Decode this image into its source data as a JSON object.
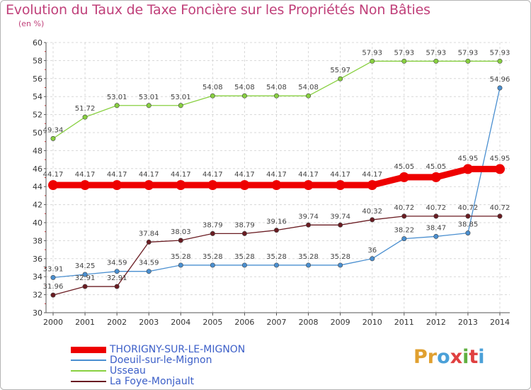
{
  "title": "Evolution du Taux de Taxe Foncière sur les Propriétés Non Bâties",
  "unit_label": "(en %)",
  "brand": {
    "name": "Proxiti",
    "letters": [
      "P",
      "r",
      "o",
      "x",
      "i",
      "t",
      "i"
    ],
    "colors": [
      "#e0a030",
      "#e0a030",
      "#4aa0d8",
      "#e04040",
      "#60b040",
      "#e04040",
      "#4aa0d8"
    ]
  },
  "chart_data": {
    "type": "line",
    "title": "Evolution du Taux de Taxe Foncière sur les Propriétés Non Bâties",
    "ylabel": "(en %)",
    "xlabel": "",
    "ylim": [
      30,
      60
    ],
    "y_ticks": [
      30,
      32,
      34,
      36,
      38,
      40,
      42,
      44,
      46,
      48,
      50,
      52,
      54,
      56,
      58,
      60
    ],
    "x": [
      "2000",
      "2001",
      "2002",
      "2003",
      "2004",
      "2005",
      "2006",
      "2007",
      "2008",
      "2009",
      "2010",
      "2011",
      "2012",
      "2013",
      "2014"
    ],
    "grid": true,
    "legend_position": "bottom-left",
    "series": [
      {
        "name": "THORIGNY-SUR-LE-MIGNON",
        "color": "#ee0000",
        "emphasis": true,
        "values": [
          44.17,
          44.17,
          44.17,
          44.17,
          44.17,
          44.17,
          44.17,
          44.17,
          44.17,
          44.17,
          44.17,
          45.05,
          45.05,
          45.95,
          45.95
        ],
        "labels": [
          "44.17",
          "44.17",
          "44.17",
          "44.17",
          "44.17",
          "44.17",
          "44.17",
          "44.17",
          "44.17",
          "44.17",
          "44.17",
          "45.05",
          "45.05",
          "45.95",
          "45.95"
        ]
      },
      {
        "name": "Doeuil-sur-le-Mignon",
        "color": "#4a8fd0",
        "values": [
          33.91,
          34.25,
          34.59,
          34.59,
          35.28,
          35.28,
          35.28,
          35.28,
          35.28,
          35.28,
          36,
          38.22,
          38.47,
          38.85,
          54.96
        ],
        "labels": [
          "33.91",
          "34.25",
          "34.59",
          "34.59",
          "35.28",
          "35.28",
          "35.28",
          "35.28",
          "35.28",
          "35.28",
          "36",
          "38.22",
          "38.47",
          "38.85",
          "54.96"
        ]
      },
      {
        "name": "Usseau",
        "color": "#88d040",
        "values": [
          49.34,
          51.72,
          53.01,
          53.01,
          53.01,
          54.08,
          54.08,
          54.08,
          54.08,
          55.97,
          57.93,
          57.93,
          57.93,
          57.93,
          57.93
        ],
        "labels": [
          "49.34",
          "51.72",
          "53.01",
          "53.01",
          "53.01",
          "54.08",
          "54.08",
          "54.08",
          "54.08",
          "55.97",
          "57.93",
          "57.93",
          "57.93",
          "57.93",
          "57.93"
        ]
      },
      {
        "name": "La Foye-Monjault",
        "color": "#6a1c22",
        "values": [
          31.96,
          32.91,
          32.91,
          37.84,
          38.03,
          38.79,
          38.79,
          39.16,
          39.74,
          39.74,
          40.32,
          40.72,
          40.72,
          40.72,
          40.72
        ],
        "labels": [
          "31.96",
          "32.91",
          "32.91",
          "37.84",
          "38.03",
          "38.79",
          "38.79",
          "39.16",
          "39.74",
          "39.74",
          "40.32",
          "40.72",
          "40.72",
          "40.72",
          "40.72"
        ]
      }
    ]
  }
}
